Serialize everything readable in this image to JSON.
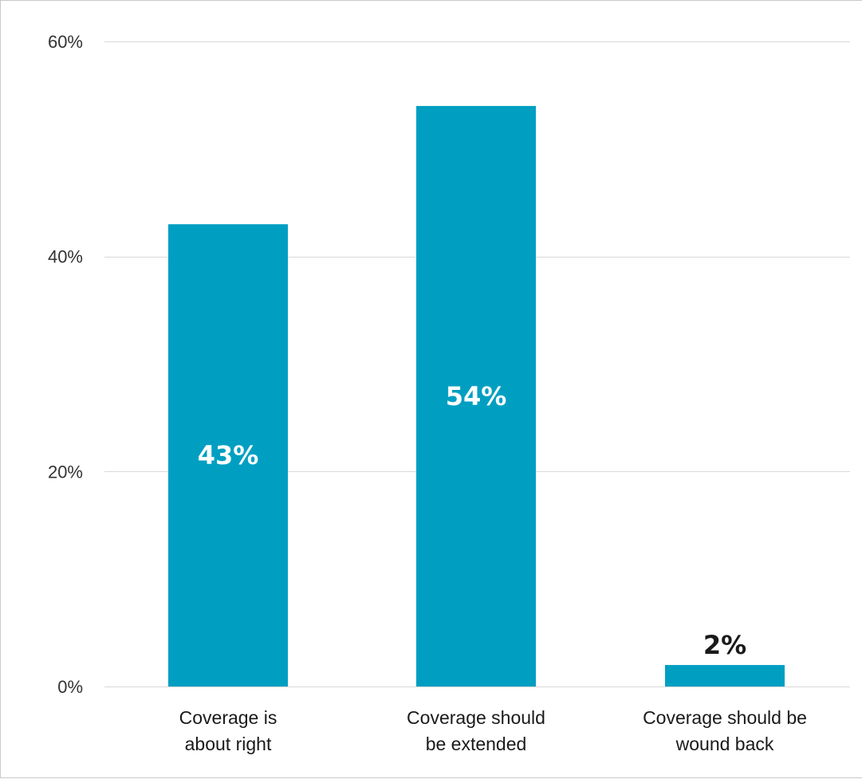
{
  "chart_data": {
    "type": "bar",
    "categories": [
      [
        "Coverage is",
        "about right"
      ],
      [
        "Coverage should",
        "be extended"
      ],
      [
        "Coverage should be",
        "wound back"
      ]
    ],
    "values": [
      43,
      54,
      2
    ],
    "value_labels": [
      "43%",
      "54%",
      "2%"
    ],
    "title": "",
    "xlabel": "",
    "ylabel": "",
    "ylim": [
      0,
      60
    ],
    "yticks": [
      0,
      20,
      40,
      60
    ],
    "ytick_labels": [
      "0%",
      "20%",
      "40%",
      "60%"
    ],
    "grid": true,
    "legend": "none",
    "colors": {
      "bar": "#009fc2",
      "label_inside": "#ffffff",
      "label_outside": "#1a1a1a"
    }
  }
}
